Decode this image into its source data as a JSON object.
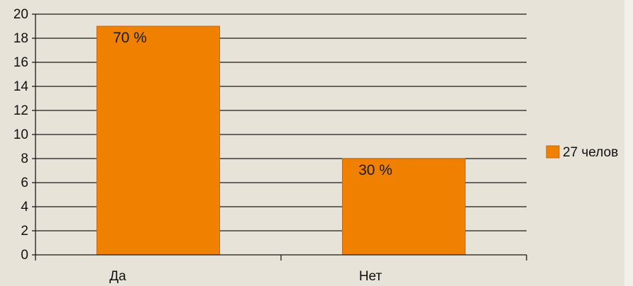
{
  "chart_data": {
    "type": "bar",
    "categories": [
      "Да",
      "Нет"
    ],
    "series": [
      {
        "name": "27 челов",
        "values": [
          19,
          8
        ],
        "data_labels": [
          "70 %",
          "30 %"
        ]
      }
    ],
    "ylim": [
      0,
      20
    ],
    "ytick_step": 2,
    "grid": true,
    "legend_position": "right",
    "colors": {
      "bar": "#f08000",
      "bar_edge": "#b86a1e",
      "grid": "#1a1a1a",
      "background": "#e8e3d9"
    }
  }
}
